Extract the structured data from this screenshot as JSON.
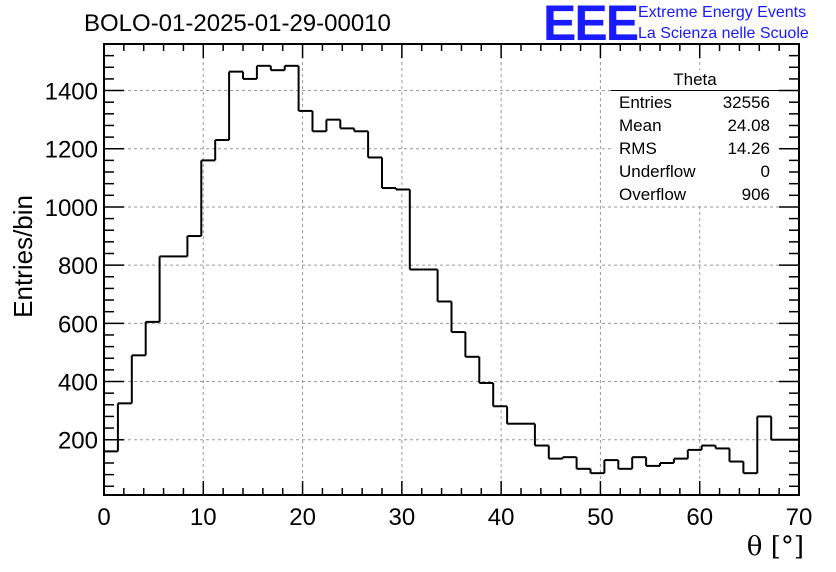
{
  "title": "BOLO-01-2025-01-29-00010",
  "logo": {
    "letters": "EEE",
    "line1": "Extreme Energy Events",
    "line2": "La Scienza nelle Scuole",
    "color": "#1a1aff"
  },
  "stats": {
    "title": "Theta",
    "rows": [
      {
        "label": "Entries",
        "value": "32556"
      },
      {
        "label": "Mean",
        "value": "24.08"
      },
      {
        "label": "RMS",
        "value": "14.26"
      },
      {
        "label": "Underflow",
        "value": "0"
      },
      {
        "label": "Overflow",
        "value": "906"
      }
    ]
  },
  "chart_data": {
    "type": "histogram",
    "xlabel": "θ [°]",
    "ylabel": "Entries/bin",
    "xlim": [
      0,
      70
    ],
    "ylim": [
      10,
      1560
    ],
    "xticks": [
      0,
      10,
      20,
      30,
      40,
      50,
      60,
      70
    ],
    "yticks": [
      200,
      400,
      600,
      800,
      1000,
      1200,
      1400
    ],
    "grid": true,
    "bin_edges_start": 0,
    "bin_width": 1.4,
    "values": [
      160,
      325,
      490,
      605,
      830,
      830,
      900,
      1160,
      1230,
      1465,
      1440,
      1485,
      1470,
      1485,
      1330,
      1260,
      1300,
      1270,
      1260,
      1170,
      1065,
      1060,
      785,
      785,
      675,
      570,
      485,
      395,
      315,
      255,
      255,
      180,
      135,
      140,
      100,
      85,
      130,
      100,
      140,
      110,
      120,
      135,
      165,
      180,
      170,
      125,
      85,
      280,
      200,
      200
    ]
  }
}
